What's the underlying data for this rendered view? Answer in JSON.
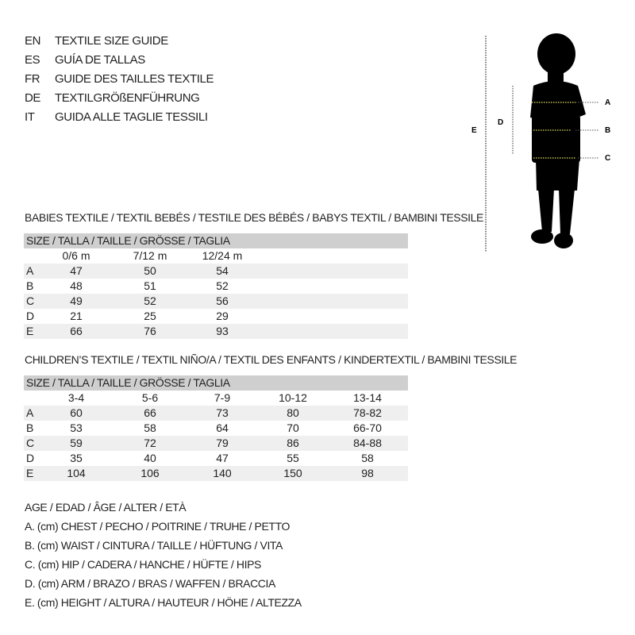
{
  "titles": [
    {
      "lang": "EN",
      "text": "TEXTILE SIZE GUIDE"
    },
    {
      "lang": "ES",
      "text": "GUÍA DE TALLAS"
    },
    {
      "lang": "FR",
      "text": "GUIDE DES TAILLES TEXTILE"
    },
    {
      "lang": "DE",
      "text": "TEXTILGRÖßENFÜHRUNG"
    },
    {
      "lang": "IT",
      "text": "GUIDA ALLE TAGLIE TESSILI"
    }
  ],
  "figure": {
    "labels": {
      "A": "A",
      "B": "B",
      "C": "C",
      "D": "D",
      "E": "E"
    },
    "measure_line_color": "#e8e060",
    "silhouette_color": "#000000"
  },
  "babies": {
    "section_title": "BABIES TEXTILE / TEXTIL BEBÉS / TESTILE DES BÉBÉS / BABYS TEXTIL / BAMBINI TESSILE",
    "size_header": "SIZE / TALLA / TAILLE / GRÖSSE / TAGLIA",
    "columns": [
      "0/6 m",
      "7/12 m",
      "12/24 m"
    ],
    "rows": [
      {
        "label": "A",
        "values": [
          "47",
          "50",
          "54"
        ]
      },
      {
        "label": "B",
        "values": [
          "48",
          "51",
          "52"
        ]
      },
      {
        "label": "C",
        "values": [
          "49",
          "52",
          "56"
        ]
      },
      {
        "label": "D",
        "values": [
          "21",
          "25",
          "29"
        ]
      },
      {
        "label": "E",
        "values": [
          "66",
          "76",
          "93"
        ]
      }
    ]
  },
  "children": {
    "section_title": "CHILDREN’S TEXTILE / TEXTIL NIÑO/A / TEXTIL DES ENFANTS / KINDERTEXTIL / BAMBINI TESSILE",
    "size_header": "SIZE / TALLA / TAILLE / GRÖSSE / TAGLIA",
    "columns": [
      "3-4",
      "5-6",
      "7-9",
      "10-12",
      "13-14"
    ],
    "rows": [
      {
        "label": "A",
        "values": [
          "60",
          "66",
          "73",
          "80",
          "78-82"
        ]
      },
      {
        "label": "B",
        "values": [
          "53",
          "58",
          "64",
          "70",
          "66-70"
        ]
      },
      {
        "label": "C",
        "values": [
          "59",
          "72",
          "79",
          "86",
          "84-88"
        ]
      },
      {
        "label": "D",
        "values": [
          "35",
          "40",
          "47",
          "55",
          "58"
        ]
      },
      {
        "label": "E",
        "values": [
          "104",
          "106",
          "140",
          "150",
          "98"
        ]
      }
    ]
  },
  "legend": [
    "AGE / EDAD / ÂGE / ALTER / ETÀ",
    "A. (cm) CHEST / PECHO / POITRINE / TRUHE / PETTO",
    "B. (cm) WAIST / CINTURA / TAILLE / HÜFTUNG / VITA",
    "C. (cm) HIP / CADERA / HANCHE / HÜFTE / HIPS",
    "D. (cm) ARM / BRAZO / BRAS / WAFFEN / BRACCIA",
    "E. (cm) HEIGHT / ALTURA / HAUTEUR / HÖHE / ALTEZZA"
  ]
}
